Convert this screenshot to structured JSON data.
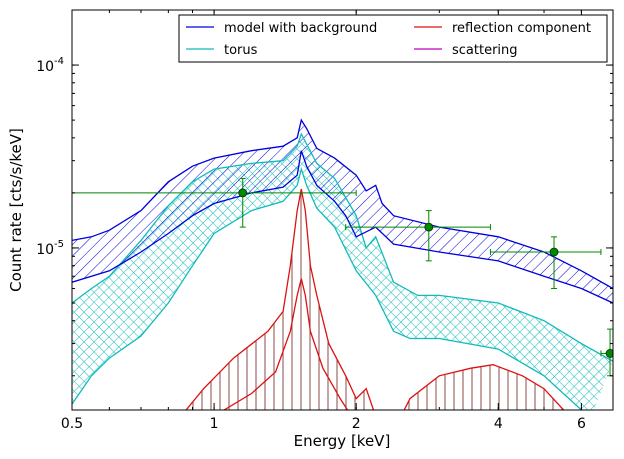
{
  "chart_data": {
    "type": "line",
    "title": "",
    "xlabel": "Energy [keV]",
    "ylabel": "Count rate [cts/s/keV]",
    "xscale": "log",
    "yscale": "log",
    "xlim": [
      0.5,
      7.0
    ],
    "ylim": [
      1.3e-06,
      0.0002
    ],
    "x_ticks": [
      {
        "value": 0.5,
        "label": "0.5"
      },
      {
        "value": 1,
        "label": "1"
      },
      {
        "value": 2,
        "label": "2"
      },
      {
        "value": 4,
        "label": "4"
      },
      {
        "value": 6,
        "label": "6"
      }
    ],
    "y_ticks": [
      {
        "value": 1e-05,
        "label": "10",
        "exp": "-5"
      },
      {
        "value": 0.0001,
        "label": "10",
        "exp": "-4"
      }
    ],
    "legend": {
      "placement": "top-right",
      "columns": 2,
      "entries": [
        {
          "label": "model with background",
          "color": "#0000dd"
        },
        {
          "label": "torus",
          "color": "#11bbbb"
        },
        {
          "label": "reflection component",
          "color": "#dd1111"
        },
        {
          "label": "scattering",
          "color": "#bb00bb"
        }
      ]
    },
    "colors": {
      "model": "#0000dd",
      "torus": "#11bbbb",
      "reflection": "#dd1111",
      "reflection_fill": "#8b4a4a",
      "data": "#008800"
    },
    "series": [
      {
        "name": "model with background",
        "band": true,
        "upper": [
          [
            0.5,
            1.1e-05
          ],
          [
            0.55,
            1.15e-05
          ],
          [
            0.6,
            1.25e-05
          ],
          [
            0.7,
            1.6e-05
          ],
          [
            0.8,
            2.3e-05
          ],
          [
            0.9,
            2.8e-05
          ],
          [
            1.0,
            3.1e-05
          ],
          [
            1.2,
            3.4e-05
          ],
          [
            1.4,
            3.6e-05
          ],
          [
            1.5,
            4e-05
          ],
          [
            1.53,
            5e-05
          ],
          [
            1.57,
            4.5e-05
          ],
          [
            1.65,
            3.5e-05
          ],
          [
            1.8,
            3.1e-05
          ],
          [
            2.0,
            2.5e-05
          ],
          [
            2.1,
            2.05e-05
          ],
          [
            2.2,
            2.2e-05
          ],
          [
            2.27,
            1.75e-05
          ],
          [
            2.4,
            1.5e-05
          ],
          [
            3.0,
            1.3e-05
          ],
          [
            4.0,
            1.15e-05
          ],
          [
            5.0,
            9.5e-06
          ],
          [
            6.0,
            7.5e-06
          ],
          [
            7.0,
            6e-06
          ]
        ],
        "lower": [
          [
            0.5,
            6.5e-06
          ],
          [
            0.6,
            7.5e-06
          ],
          [
            0.7,
            9.5e-06
          ],
          [
            0.8,
            1.2e-05
          ],
          [
            0.9,
            1.5e-05
          ],
          [
            1.0,
            1.75e-05
          ],
          [
            1.2,
            2e-05
          ],
          [
            1.4,
            2.15e-05
          ],
          [
            1.5,
            2.5e-05
          ],
          [
            1.53,
            3.4e-05
          ],
          [
            1.57,
            2.8e-05
          ],
          [
            1.65,
            2.2e-05
          ],
          [
            1.8,
            1.8e-05
          ],
          [
            1.9,
            1.5e-05
          ],
          [
            2.0,
            1.15e-05
          ],
          [
            2.2,
            1.3e-05
          ],
          [
            2.4,
            1.05e-05
          ],
          [
            3.0,
            9.5e-06
          ],
          [
            4.0,
            8.5e-06
          ],
          [
            5.0,
            7e-06
          ],
          [
            6.0,
            6e-06
          ],
          [
            7.0,
            5e-06
          ]
        ]
      },
      {
        "name": "torus",
        "band": true,
        "upper": [
          [
            0.5,
            5e-06
          ],
          [
            0.55,
            6e-06
          ],
          [
            0.6,
            7e-06
          ],
          [
            0.7,
            1.1e-05
          ],
          [
            0.8,
            1.7e-05
          ],
          [
            0.9,
            2.3e-05
          ],
          [
            1.0,
            2.7e-05
          ],
          [
            1.2,
            2.9e-05
          ],
          [
            1.4,
            3e-05
          ],
          [
            1.5,
            3.6e-05
          ],
          [
            1.53,
            4.2e-05
          ],
          [
            1.57,
            3.7e-05
          ],
          [
            1.65,
            2.9e-05
          ],
          [
            1.8,
            2.4e-05
          ],
          [
            2.0,
            1.5e-05
          ],
          [
            2.1,
            1e-05
          ],
          [
            2.2,
            1.15e-05
          ],
          [
            2.4,
            6.5e-06
          ],
          [
            2.7,
            5.5e-06
          ],
          [
            3.0,
            5.5e-06
          ],
          [
            4.0,
            5e-06
          ],
          [
            5.0,
            4e-06
          ],
          [
            6.0,
            3e-06
          ],
          [
            7.0,
            2.4e-06
          ]
        ],
        "lower": [
          [
            0.5,
            1.4e-06
          ],
          [
            0.55,
            2e-06
          ],
          [
            0.6,
            2.5e-06
          ],
          [
            0.7,
            3.3e-06
          ],
          [
            0.8,
            5e-06
          ],
          [
            0.9,
            8e-06
          ],
          [
            1.0,
            1.2e-05
          ],
          [
            1.2,
            1.6e-05
          ],
          [
            1.4,
            1.8e-05
          ],
          [
            1.5,
            2.2e-05
          ],
          [
            1.53,
            2.7e-05
          ],
          [
            1.57,
            2.2e-05
          ],
          [
            1.65,
            1.65e-05
          ],
          [
            1.8,
            1.3e-05
          ],
          [
            2.0,
            7.5e-06
          ],
          [
            2.2,
            5.5e-06
          ],
          [
            2.4,
            3.5e-06
          ],
          [
            2.6,
            3.2e-06
          ],
          [
            3.0,
            3.2e-06
          ],
          [
            4.0,
            2.8e-06
          ],
          [
            5.0,
            2e-06
          ],
          [
            6.0,
            1.3e-06
          ],
          [
            6.3,
            1.2e-06
          ]
        ]
      },
      {
        "name": "reflection component",
        "band": true,
        "upper": [
          [
            0.85,
            1.2e-06
          ],
          [
            0.95,
            1.7e-06
          ],
          [
            1.1,
            2.5e-06
          ],
          [
            1.3,
            3.5e-06
          ],
          [
            1.4,
            4.5e-06
          ],
          [
            1.45,
            8e-06
          ],
          [
            1.5,
            1.6e-05
          ],
          [
            1.53,
            2.1e-05
          ],
          [
            1.56,
            1.6e-05
          ],
          [
            1.6,
            8e-06
          ],
          [
            1.65,
            5.5e-06
          ],
          [
            1.75,
            3e-06
          ],
          [
            1.9,
            2e-06
          ],
          [
            2.0,
            1.5e-06
          ],
          [
            2.1,
            1.7e-06
          ],
          [
            2.2,
            1.2e-06
          ],
          [
            2.4,
            1e-06
          ],
          [
            2.6,
            1.5e-06
          ],
          [
            3.0,
            2e-06
          ],
          [
            3.5,
            2.2e-06
          ],
          [
            3.9,
            2.3e-06
          ],
          [
            4.5,
            2e-06
          ],
          [
            5.0,
            1.7e-06
          ],
          [
            5.5,
            1.3e-06
          ]
        ],
        "lower": [
          [
            1.05,
            1.3e-06
          ],
          [
            1.2,
            1.6e-06
          ],
          [
            1.35,
            2.1e-06
          ],
          [
            1.45,
            3.5e-06
          ],
          [
            1.5,
            5.5e-06
          ],
          [
            1.53,
            6.8e-06
          ],
          [
            1.56,
            5.5e-06
          ],
          [
            1.6,
            3.5e-06
          ],
          [
            1.7,
            2.2e-06
          ],
          [
            1.85,
            1.5e-06
          ],
          [
            2.0,
            1.1e-06
          ],
          [
            2.1,
            1.2e-06
          ]
        ]
      }
    ],
    "data_points": [
      {
        "x": 1.15,
        "y": 2e-05,
        "xerr": [
          0.5,
          2.0
        ],
        "yerr": [
          1.3e-05,
          2.4e-05
        ]
      },
      {
        "x": 2.85,
        "y": 1.3e-05,
        "xerr": [
          1.9,
          3.85
        ],
        "yerr": [
          8.5e-06,
          1.6e-05
        ]
      },
      {
        "x": 5.25,
        "y": 9.5e-06,
        "xerr": [
          3.85,
          6.6
        ],
        "yerr": [
          6e-06,
          1.15e-05
        ]
      },
      {
        "x": 6.9,
        "y": 2.65e-06,
        "xerr": [
          6.6,
          7.0
        ],
        "yerr": [
          2e-06,
          3.6e-06
        ]
      }
    ]
  }
}
